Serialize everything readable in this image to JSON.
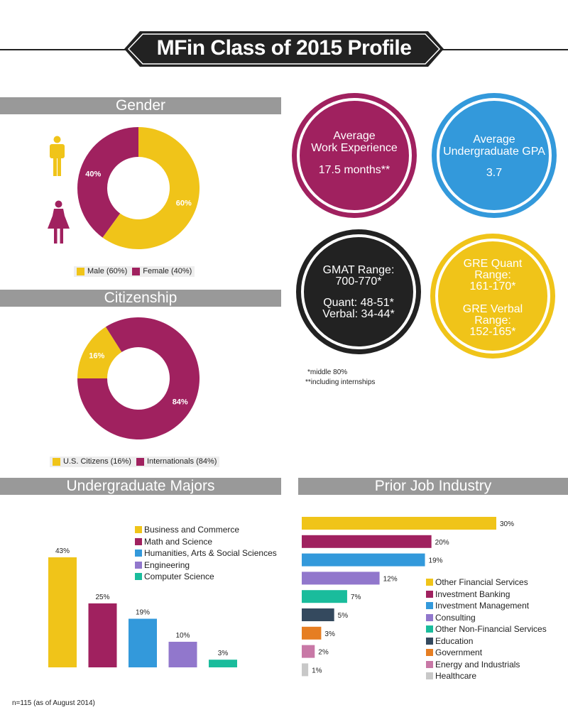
{
  "title": "MFin Class of 2015 Profile",
  "colors": {
    "gold": "#F0C419",
    "magenta": "#A0215F",
    "blue": "#3399DB",
    "purple": "#9177CC",
    "teal": "#1ABC9C",
    "navy": "#34495E",
    "orange": "#E67E22",
    "pink": "#C878A6",
    "gray": "#C8C8C8",
    "dark": "#222222",
    "section_bar": "#999999"
  },
  "icons": [
    "male-icon",
    "female-icon"
  ],
  "sections": {
    "gender": "Gender",
    "citizenship": "Citizenship",
    "majors": "Undergraduate Majors",
    "industry": "Prior Job Industry"
  },
  "stats": {
    "work": {
      "line1": "Average",
      "line2": "Work Experience",
      "value": "17.5 months**"
    },
    "gpa": {
      "line1": "Average",
      "line2": "Undergraduate GPA",
      "value": "3.7"
    },
    "gmat": {
      "line1": "GMAT Range:",
      "line2": "700-770*",
      "line3": "Quant: 48-51*",
      "line4": "Verbal: 34-44*"
    },
    "gre": {
      "line1": "GRE Quant",
      "line2": "Range:",
      "line3": "161-170*",
      "line4": "GRE Verbal",
      "line5": "Range:",
      "line6": "152-165*"
    }
  },
  "notes": {
    "note1": "*middle 80%",
    "note2": "**including internships",
    "footer": "n=115 (as of August 2014)"
  },
  "chart_data": [
    {
      "type": "pie",
      "title": "Gender",
      "slices": [
        {
          "label": "60%",
          "value": 60,
          "color": "#F0C419"
        },
        {
          "label": "40%",
          "value": 40,
          "color": "#A0215F"
        }
      ],
      "legend": [
        "Male (60%)",
        "Female (40%)"
      ]
    },
    {
      "type": "pie",
      "title": "Citizenship",
      "slices": [
        {
          "label": "16%",
          "value": 16,
          "color": "#F0C419"
        },
        {
          "label": "84%",
          "value": 84,
          "color": "#A0215F"
        }
      ],
      "legend": [
        "U.S. Citizens (16%)",
        "Internationals (84%)"
      ]
    },
    {
      "type": "bar",
      "title": "Undergraduate Majors",
      "categories": [
        "Business and Commerce",
        "Math and Science",
        "Humanities, Arts & Social Sciences",
        "Engineering",
        "Computer Science"
      ],
      "values": [
        43,
        25,
        19,
        10,
        3
      ],
      "labels": [
        "43%",
        "25%",
        "19%",
        "10%",
        "3%"
      ],
      "colors": [
        "#F0C419",
        "#A0215F",
        "#3399DB",
        "#9177CC",
        "#1ABC9C"
      ]
    },
    {
      "type": "bar",
      "orientation": "horizontal",
      "title": "Prior Job Industry",
      "categories": [
        "Other Financial Services",
        "Investment Banking",
        "Investment Management",
        "Consulting",
        "Other Non-Financial Services",
        "Education",
        "Government",
        "Energy and Industrials",
        "Healthcare"
      ],
      "values": [
        30,
        20,
        19,
        12,
        7,
        5,
        3,
        2,
        1
      ],
      "labels": [
        "30%",
        "20%",
        "19%",
        "12%",
        "7%",
        "5%",
        "3%",
        "2%",
        "1%"
      ],
      "colors": [
        "#F0C419",
        "#A0215F",
        "#3399DB",
        "#9177CC",
        "#1ABC9C",
        "#34495E",
        "#E67E22",
        "#C878A6",
        "#C8C8C8"
      ]
    }
  ]
}
